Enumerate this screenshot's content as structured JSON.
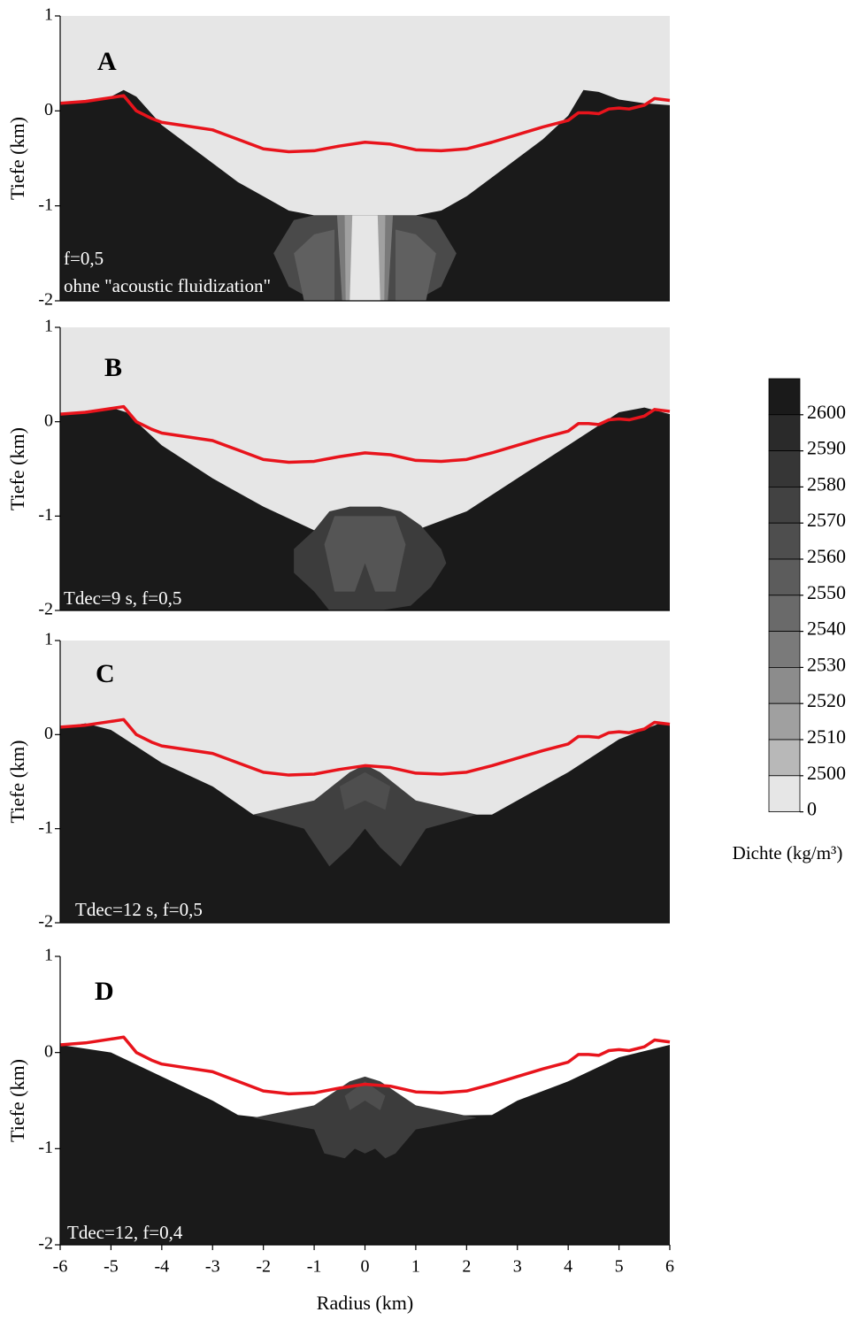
{
  "chart_data": [
    {
      "type": "contour",
      "label": "A",
      "ylabel": "Tiefe (km)",
      "annotations": [
        "f=0,5",
        "ohne \"acoustic fluidization\""
      ],
      "xlim": [
        -6,
        6
      ],
      "ylim": [
        -2,
        1
      ],
      "yticks": [
        -2,
        -1,
        0,
        1
      ],
      "background": "#e6e6e6",
      "regions": [
        {
          "fill": "#1a1a1a",
          "x": [
            -6,
            -5.5,
            -5,
            -4.75,
            -4.5,
            -4,
            -3.5,
            -3,
            -2.5,
            -2,
            -1.5,
            -1,
            1,
            1.5,
            2,
            2.5,
            3,
            3.5,
            4,
            4.3,
            4.6,
            5,
            5.5,
            6,
            6,
            -6
          ],
          "y": [
            0.08,
            0.1,
            0.15,
            0.22,
            0.15,
            -0.15,
            -0.35,
            -0.55,
            -0.75,
            -0.9,
            -1.05,
            -1.1,
            -1.1,
            -1.05,
            -0.9,
            -0.7,
            -0.5,
            -0.3,
            -0.05,
            0.22,
            0.2,
            0.12,
            0.08,
            0.06,
            -2,
            -2
          ]
        },
        {
          "fill": "#4a4a4a",
          "x": [
            -1.8,
            -1.4,
            -1,
            -0.6,
            0.6,
            1,
            1.4,
            1.8,
            1.5,
            1,
            -1,
            -1.5
          ],
          "y": [
            -1.5,
            -1.15,
            -1.1,
            -1.1,
            -1.1,
            -1.1,
            -1.15,
            -1.5,
            -1.85,
            -2,
            -2,
            -1.85
          ]
        },
        {
          "fill": "#606060",
          "x": [
            -1.4,
            -1,
            -0.6,
            -0.6,
            -1.2
          ],
          "y": [
            -1.5,
            -1.3,
            -1.25,
            -2,
            -2
          ]
        },
        {
          "fill": "#606060",
          "x": [
            1.4,
            1,
            0.6,
            0.6,
            1.2
          ],
          "y": [
            -1.5,
            -1.3,
            -1.25,
            -2,
            -2
          ]
        },
        {
          "fill": "#7a7a7a",
          "x": [
            -0.55,
            0.55,
            0.45,
            -0.45
          ],
          "y": [
            -1.1,
            -1.1,
            -2,
            -2
          ]
        },
        {
          "fill": "#a0a0a0",
          "x": [
            -0.4,
            0.4,
            0.38,
            -0.38
          ],
          "y": [
            -1.1,
            -1.1,
            -2,
            -2
          ]
        },
        {
          "fill": "#e6e6e6",
          "x": [
            -0.25,
            0.25,
            0.3,
            -0.3
          ],
          "y": [
            -1.1,
            -1.1,
            -2,
            -2
          ]
        }
      ],
      "line": {
        "color": "#e8141c",
        "x": [
          -6,
          -5.5,
          -5,
          -4.75,
          -4.5,
          -4.2,
          -4,
          -3.5,
          -3,
          -2.5,
          -2,
          -1.5,
          -1,
          -0.5,
          0,
          0.5,
          1,
          1.5,
          2,
          2.5,
          3,
          3.5,
          4,
          4.2,
          4.4,
          4.6,
          4.8,
          5,
          5.2,
          5.5,
          5.7,
          6
        ],
        "y": [
          0.08,
          0.1,
          0.14,
          0.16,
          0,
          -0.08,
          -0.12,
          -0.16,
          -0.2,
          -0.3,
          -0.4,
          -0.43,
          -0.42,
          -0.37,
          -0.33,
          -0.35,
          -0.41,
          -0.42,
          -0.4,
          -0.33,
          -0.25,
          -0.17,
          -0.1,
          -0.02,
          -0.02,
          -0.03,
          0.02,
          0.03,
          0.02,
          0.06,
          0.13,
          0.11
        ]
      }
    },
    {
      "type": "contour",
      "label": "B",
      "ylabel": "Tiefe (km)",
      "annotations": [
        "Tdec=9 s, f=0,5"
      ],
      "xlim": [
        -6,
        6
      ],
      "ylim": [
        -2,
        1
      ],
      "yticks": [
        -2,
        -1,
        0,
        1
      ],
      "background": "#e6e6e6",
      "regions": [
        {
          "fill": "#1a1a1a",
          "x": [
            -6,
            -5,
            -4.7,
            -4,
            -3,
            -2,
            -1,
            1,
            2,
            3,
            4,
            5,
            5.5,
            6,
            6,
            -6
          ],
          "y": [
            0.08,
            0.15,
            0.1,
            -0.25,
            -0.6,
            -0.9,
            -1.15,
            -1.15,
            -0.95,
            -0.6,
            -0.25,
            0.1,
            0.15,
            0.08,
            -2,
            -2
          ]
        },
        {
          "fill": "#3c3c3c",
          "x": [
            -1.0,
            -0.7,
            -0.3,
            0.3,
            0.7,
            1.1,
            1.5,
            1.6,
            1.3,
            0.9,
            0.3,
            -0.7,
            -1.0,
            -1.4,
            -1.4
          ],
          "y": [
            -1.15,
            -0.95,
            -0.9,
            -0.9,
            -0.95,
            -1.1,
            -1.35,
            -1.5,
            -1.75,
            -1.95,
            -2,
            -2,
            -1.8,
            -1.6,
            -1.35
          ]
        },
        {
          "fill": "#555555",
          "x": [
            -0.6,
            0.6,
            0.8,
            0.6,
            0.2,
            0,
            -0.2,
            -0.6,
            -0.8
          ],
          "y": [
            -1.0,
            -1.0,
            -1.3,
            -1.8,
            -1.8,
            -1.5,
            -1.8,
            -1.8,
            -1.3
          ]
        }
      ],
      "line": {
        "color": "#e8141c",
        "x": [
          -6,
          -5.5,
          -5,
          -4.75,
          -4.5,
          -4.2,
          -4,
          -3.5,
          -3,
          -2.5,
          -2,
          -1.5,
          -1,
          -0.5,
          0,
          0.5,
          1,
          1.5,
          2,
          2.5,
          3,
          3.5,
          4,
          4.2,
          4.4,
          4.6,
          4.8,
          5,
          5.2,
          5.5,
          5.7,
          6
        ],
        "y": [
          0.08,
          0.1,
          0.14,
          0.16,
          0,
          -0.08,
          -0.12,
          -0.16,
          -0.2,
          -0.3,
          -0.4,
          -0.43,
          -0.42,
          -0.37,
          -0.33,
          -0.35,
          -0.41,
          -0.42,
          -0.4,
          -0.33,
          -0.25,
          -0.17,
          -0.1,
          -0.02,
          -0.02,
          -0.03,
          0.02,
          0.03,
          0.02,
          0.06,
          0.13,
          0.11
        ]
      }
    },
    {
      "type": "contour",
      "label": "C",
      "ylabel": "Tiefe (km)",
      "annotations": [
        "Tdec=12 s, f=0,5"
      ],
      "xlim": [
        -6,
        6
      ],
      "ylim": [
        -2,
        1
      ],
      "yticks": [
        -2,
        -1,
        0,
        1
      ],
      "background": "#e6e6e6",
      "regions": [
        {
          "fill": "#1a1a1a",
          "x": [
            -6,
            -5.5,
            -5,
            -4,
            -3,
            -2.2,
            2.5,
            3,
            4,
            5,
            5.8,
            6,
            6,
            -6
          ],
          "y": [
            0.08,
            0.12,
            0.05,
            -0.3,
            -0.55,
            -0.85,
            -0.85,
            -0.7,
            -0.4,
            -0.05,
            0.12,
            0.1,
            -2,
            -2
          ]
        },
        {
          "fill": "#404040",
          "x": [
            -2.2,
            -1,
            -0.3,
            0,
            0.3,
            1,
            2.2,
            1.2,
            0.7,
            0.3,
            0,
            -0.3,
            -0.7,
            -1.2
          ],
          "y": [
            -0.85,
            -0.7,
            -0.4,
            -0.32,
            -0.4,
            -0.7,
            -0.85,
            -1.0,
            -1.4,
            -1.2,
            -1.0,
            -1.2,
            -1.4,
            -1.0
          ]
        },
        {
          "fill": "#4e4e4e",
          "x": [
            -0.5,
            0,
            0.5,
            0.4,
            0,
            -0.4
          ],
          "y": [
            -0.55,
            -0.4,
            -0.55,
            -0.8,
            -0.7,
            -0.8
          ]
        }
      ],
      "line": {
        "color": "#e8141c",
        "x": [
          -6,
          -5.5,
          -5,
          -4.75,
          -4.5,
          -4.2,
          -4,
          -3.5,
          -3,
          -2.5,
          -2,
          -1.5,
          -1,
          -0.5,
          0,
          0.5,
          1,
          1.5,
          2,
          2.5,
          3,
          3.5,
          4,
          4.2,
          4.4,
          4.6,
          4.8,
          5,
          5.2,
          5.5,
          5.7,
          6
        ],
        "y": [
          0.08,
          0.1,
          0.14,
          0.16,
          0,
          -0.08,
          -0.12,
          -0.16,
          -0.2,
          -0.3,
          -0.4,
          -0.43,
          -0.42,
          -0.37,
          -0.33,
          -0.35,
          -0.41,
          -0.42,
          -0.4,
          -0.33,
          -0.25,
          -0.17,
          -0.1,
          -0.02,
          -0.02,
          -0.03,
          0.02,
          0.03,
          0.02,
          0.06,
          0.13,
          0.11
        ]
      }
    },
    {
      "type": "contour",
      "label": "D",
      "ylabel": "Tiefe (km)",
      "annotations": [
        "Tdec=12, f=0,4"
      ],
      "xlim": [
        -6,
        6
      ],
      "ylim": [
        -2,
        1
      ],
      "yticks": [
        -2,
        -1,
        0,
        1
      ],
      "xticks": [
        -6,
        -5,
        -4,
        -3,
        -2,
        -1,
        0,
        1,
        2,
        3,
        4,
        5,
        6
      ],
      "xlabel": "Radius (km)",
      "background": "#ffffff",
      "regions": [
        {
          "fill": "#1a1a1a",
          "x": [
            -6,
            -5,
            -4,
            -3,
            -2.5,
            -2,
            2.5,
            3,
            4,
            5,
            6,
            6,
            -6
          ],
          "y": [
            0.08,
            0,
            -0.25,
            -0.5,
            -0.65,
            -0.68,
            -0.65,
            -0.5,
            -0.3,
            -0.05,
            0.08,
            -2,
            -2
          ]
        },
        {
          "fill": "#3c3c3c",
          "x": [
            -2.2,
            -1,
            -0.3,
            0,
            0.3,
            1,
            2.2,
            1,
            0.6,
            0.4,
            0.2,
            0,
            -0.2,
            -0.4,
            -0.8,
            -1
          ],
          "y": [
            -0.68,
            -0.55,
            -0.3,
            -0.25,
            -0.3,
            -0.55,
            -0.68,
            -0.8,
            -1.05,
            -1.1,
            -1.0,
            -1.05,
            -1.0,
            -1.1,
            -1.05,
            -0.8
          ]
        },
        {
          "fill": "#4e4e4e",
          "x": [
            -0.4,
            0,
            0.4,
            0.3,
            0,
            -0.3
          ],
          "y": [
            -0.45,
            -0.3,
            -0.45,
            -0.6,
            -0.5,
            -0.6
          ]
        }
      ],
      "line": {
        "color": "#e8141c",
        "x": [
          -6,
          -5.5,
          -5,
          -4.75,
          -4.5,
          -4.2,
          -4,
          -3.5,
          -3,
          -2.5,
          -2,
          -1.5,
          -1,
          -0.5,
          0,
          0.5,
          1,
          1.5,
          2,
          2.5,
          3,
          3.5,
          4,
          4.2,
          4.4,
          4.6,
          4.8,
          5,
          5.2,
          5.5,
          5.7,
          6
        ],
        "y": [
          0.08,
          0.1,
          0.14,
          0.16,
          0,
          -0.08,
          -0.12,
          -0.16,
          -0.2,
          -0.3,
          -0.4,
          -0.43,
          -0.42,
          -0.37,
          -0.33,
          -0.35,
          -0.41,
          -0.42,
          -0.4,
          -0.33,
          -0.25,
          -0.17,
          -0.1,
          -0.02,
          -0.02,
          -0.03,
          0.02,
          0.03,
          0.02,
          0.06,
          0.13,
          0.11
        ]
      }
    }
  ],
  "colorbar": {
    "label": "Dichte (kg/m³)",
    "ticks": [
      2600,
      2590,
      2580,
      2570,
      2560,
      2550,
      2540,
      2530,
      2520,
      2510,
      2500,
      0
    ],
    "colors": [
      "#1a1a1a",
      "#2a2a2a",
      "#363636",
      "#424242",
      "#4e4e4e",
      "#5c5c5c",
      "#6a6a6a",
      "#7a7a7a",
      "#8c8c8c",
      "#a0a0a0",
      "#b8b8b8",
      "#e6e6e6"
    ]
  }
}
